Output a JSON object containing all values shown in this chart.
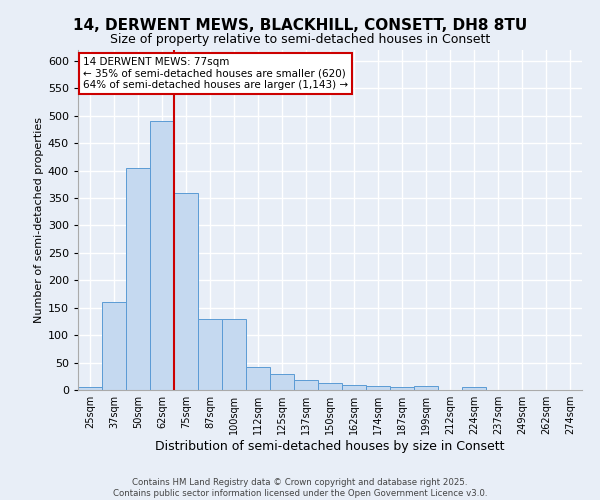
{
  "title1": "14, DERWENT MEWS, BLACKHILL, CONSETT, DH8 8TU",
  "title2": "Size of property relative to semi-detached houses in Consett",
  "xlabel": "Distribution of semi-detached houses by size in Consett",
  "ylabel": "Number of semi-detached properties",
  "categories": [
    "25sqm",
    "37sqm",
    "50sqm",
    "62sqm",
    "75sqm",
    "87sqm",
    "100sqm",
    "112sqm",
    "125sqm",
    "137sqm",
    "150sqm",
    "162sqm",
    "174sqm",
    "187sqm",
    "199sqm",
    "212sqm",
    "224sqm",
    "237sqm",
    "249sqm",
    "262sqm",
    "274sqm"
  ],
  "values": [
    5,
    160,
    405,
    490,
    360,
    130,
    130,
    42,
    30,
    18,
    12,
    10,
    8,
    5,
    7,
    0,
    5,
    0,
    0,
    0,
    0
  ],
  "bar_color": "#c5d9f0",
  "bar_edge_color": "#5b9bd5",
  "background_color": "#e8eef7",
  "grid_color": "#ffffff",
  "ylim": [
    0,
    620
  ],
  "yticks": [
    0,
    50,
    100,
    150,
    200,
    250,
    300,
    350,
    400,
    450,
    500,
    550,
    600
  ],
  "red_line_x": 3.5,
  "annotation_title": "14 DERWENT MEWS: 77sqm",
  "annotation_line1": "← 35% of semi-detached houses are smaller (620)",
  "annotation_line2": "64% of semi-detached houses are larger (1,143) →",
  "red_line_color": "#cc0000",
  "annotation_box_color": "#ffffff",
  "annotation_box_edge": "#cc0000",
  "footer1": "Contains HM Land Registry data © Crown copyright and database right 2025.",
  "footer2": "Contains public sector information licensed under the Open Government Licence v3.0."
}
